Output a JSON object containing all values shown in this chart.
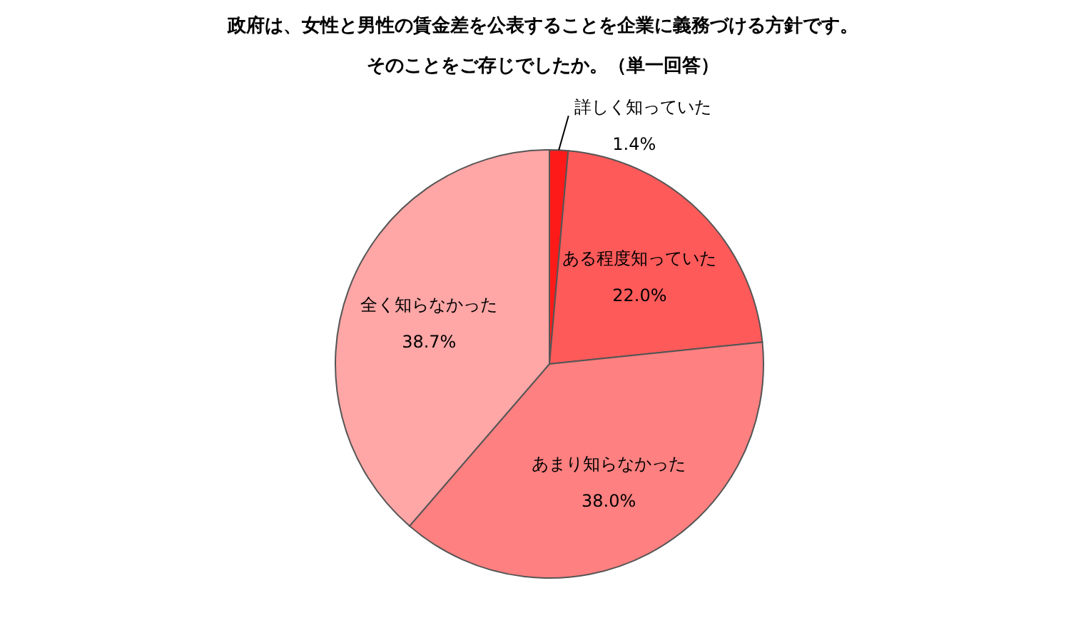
{
  "chart_data": {
    "type": "pie",
    "title": "政府は、女性と男性の賃金差を公表することを企業に義務づける方針です。",
    "subtitle": "そのことをご存じでしたか。（単一回答）",
    "categories": [
      "詳しく知っていた",
      "ある程度知っていた",
      "あまり知らなかった",
      "全く知らなかった"
    ],
    "values": [
      1.4,
      22.0,
      38.0,
      38.7
    ],
    "value_labels": [
      "1.4%",
      "22.0%",
      "38.0%",
      "38.7%"
    ],
    "colors": [
      "#ff1a1a",
      "#ff5a5a",
      "#ff8080",
      "#ffa6a6"
    ]
  }
}
